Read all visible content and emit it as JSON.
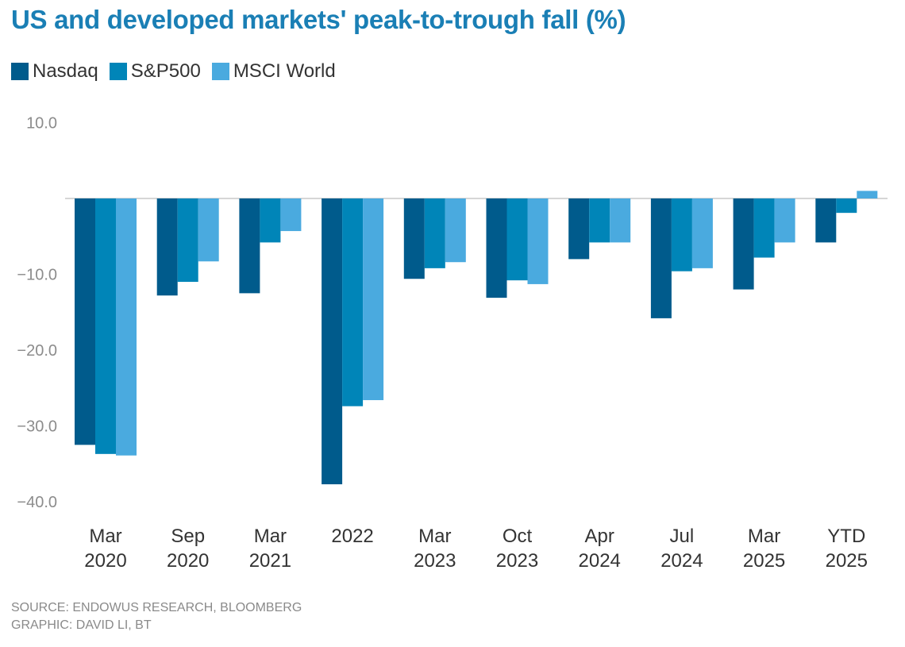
{
  "chart_data": {
    "type": "bar",
    "title": "US and developed markets' peak-to-trough fall (%)",
    "xlabel": "",
    "ylabel": "",
    "ylim": [
      -40,
      10
    ],
    "yticks": [
      "10.0",
      "",
      "-10.0",
      "-20.0",
      "-30.0",
      "-40.0"
    ],
    "ytick_values": [
      10,
      0,
      -10,
      -20,
      -30,
      -40
    ],
    "grid": false,
    "legend_position": "top-left",
    "categories": [
      [
        "Mar",
        "2020"
      ],
      [
        "Sep",
        "2020"
      ],
      [
        "Mar",
        "2021"
      ],
      [
        "2022",
        ""
      ],
      [
        "Mar",
        "2023"
      ],
      [
        "Oct",
        "2023"
      ],
      [
        "Apr",
        "2024"
      ],
      [
        "Jul",
        "2024"
      ],
      [
        "Mar",
        "2025"
      ],
      [
        "YTD",
        "2025"
      ]
    ],
    "series": [
      {
        "name": "Nasdaq",
        "color": "#005b8c",
        "values": [
          -32.5,
          -12.8,
          -12.5,
          -37.7,
          -10.6,
          -13.1,
          -8.0,
          -15.8,
          -12.0,
          -5.8
        ]
      },
      {
        "name": "S&P500",
        "color": "#0085b8",
        "values": [
          -33.7,
          -11.0,
          -5.8,
          -27.4,
          -9.2,
          -10.8,
          -5.8,
          -9.6,
          -7.8,
          -1.9
        ]
      },
      {
        "name": "MSCI World",
        "color": "#4aaadf",
        "values": [
          -33.9,
          -8.3,
          -4.3,
          -26.6,
          -8.4,
          -11.3,
          -5.8,
          -9.2,
          -5.8,
          1.0
        ]
      }
    ]
  },
  "footer": {
    "source": "SOURCE: ENDOWUS RESEARCH, BLOOMBERG",
    "graphic": "GRAPHIC: DAVID LI, BT"
  }
}
